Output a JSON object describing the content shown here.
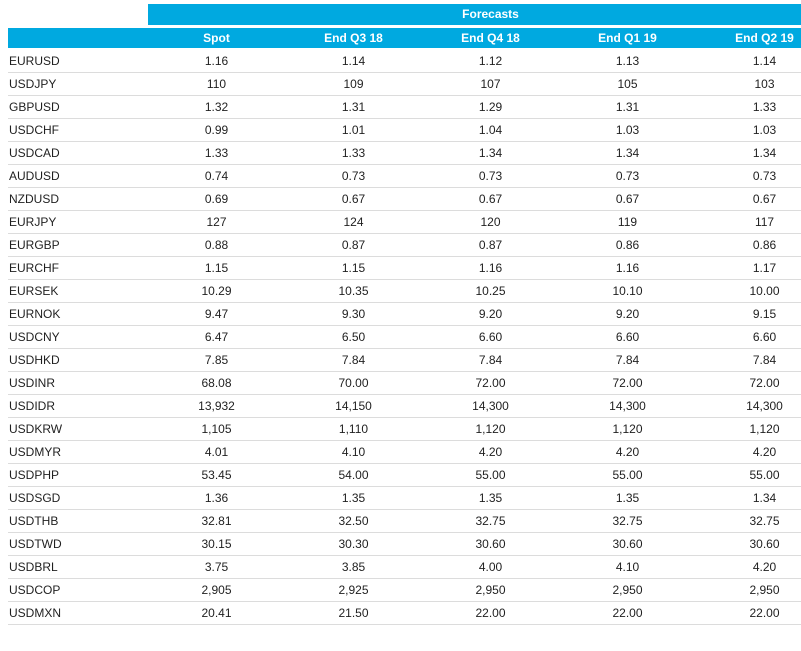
{
  "chart_data": {
    "type": "table",
    "title": "Forecasts",
    "columns": [
      "",
      "Spot",
      "End Q3 18",
      "End Q4 18",
      "End Q1 19",
      "End Q2 19"
    ],
    "rows": [
      {
        "pair": "EURUSD",
        "values": [
          "1.16",
          "1.14",
          "1.12",
          "1.13",
          "1.14"
        ]
      },
      {
        "pair": "USDJPY",
        "values": [
          "110",
          "109",
          "107",
          "105",
          "103"
        ]
      },
      {
        "pair": "GBPUSD",
        "values": [
          "1.32",
          "1.31",
          "1.29",
          "1.31",
          "1.33"
        ]
      },
      {
        "pair": "USDCHF",
        "values": [
          "0.99",
          "1.01",
          "1.04",
          "1.03",
          "1.03"
        ]
      },
      {
        "pair": "USDCAD",
        "values": [
          "1.33",
          "1.33",
          "1.34",
          "1.34",
          "1.34"
        ]
      },
      {
        "pair": "AUDUSD",
        "values": [
          "0.74",
          "0.73",
          "0.73",
          "0.73",
          "0.73"
        ]
      },
      {
        "pair": "NZDUSD",
        "values": [
          "0.69",
          "0.67",
          "0.67",
          "0.67",
          "0.67"
        ]
      },
      {
        "pair": "EURJPY",
        "values": [
          "127",
          "124",
          "120",
          "119",
          "117"
        ]
      },
      {
        "pair": "EURGBP",
        "values": [
          "0.88",
          "0.87",
          "0.87",
          "0.86",
          "0.86"
        ]
      },
      {
        "pair": "EURCHF",
        "values": [
          "1.15",
          "1.15",
          "1.16",
          "1.16",
          "1.17"
        ]
      },
      {
        "pair": "EURSEK",
        "values": [
          "10.29",
          "10.35",
          "10.25",
          "10.10",
          "10.00"
        ]
      },
      {
        "pair": "EURNOK",
        "values": [
          "9.47",
          "9.30",
          "9.20",
          "9.20",
          "9.15"
        ]
      },
      {
        "pair": "USDCNY",
        "values": [
          "6.47",
          "6.50",
          "6.60",
          "6.60",
          "6.60"
        ]
      },
      {
        "pair": "USDHKD",
        "values": [
          "7.85",
          "7.84",
          "7.84",
          "7.84",
          "7.84"
        ]
      },
      {
        "pair": "USDINR",
        "values": [
          "68.08",
          "70.00",
          "72.00",
          "72.00",
          "72.00"
        ]
      },
      {
        "pair": "USDIDR",
        "values": [
          "13,932",
          "14,150",
          "14,300",
          "14,300",
          "14,300"
        ]
      },
      {
        "pair": "USDKRW",
        "values": [
          "1,105",
          "1,110",
          "1,120",
          "1,120",
          "1,120"
        ]
      },
      {
        "pair": "USDMYR",
        "values": [
          "4.01",
          "4.10",
          "4.20",
          "4.20",
          "4.20"
        ]
      },
      {
        "pair": "USDPHP",
        "values": [
          "53.45",
          "54.00",
          "55.00",
          "55.00",
          "55.00"
        ]
      },
      {
        "pair": "USDSGD",
        "values": [
          "1.36",
          "1.35",
          "1.35",
          "1.35",
          "1.34"
        ]
      },
      {
        "pair": "USDTHB",
        "values": [
          "32.81",
          "32.50",
          "32.75",
          "32.75",
          "32.75"
        ]
      },
      {
        "pair": "USDTWD",
        "values": [
          "30.15",
          "30.30",
          "30.60",
          "30.60",
          "30.60"
        ]
      },
      {
        "pair": "USDBRL",
        "values": [
          "3.75",
          "3.85",
          "4.00",
          "4.10",
          "4.20"
        ]
      },
      {
        "pair": "USDCOP",
        "values": [
          "2,905",
          "2,925",
          "2,950",
          "2,950",
          "2,950"
        ]
      },
      {
        "pair": "USDMXN",
        "values": [
          "20.41",
          "21.50",
          "22.00",
          "22.00",
          "22.00"
        ]
      }
    ]
  },
  "colors": {
    "header_bg": "#00A9E0",
    "header_text": "#FFFFFF",
    "body_text": "#1F1F1F",
    "row_border": "#DCDCDC",
    "page_bg": "#FFFFFF"
  }
}
